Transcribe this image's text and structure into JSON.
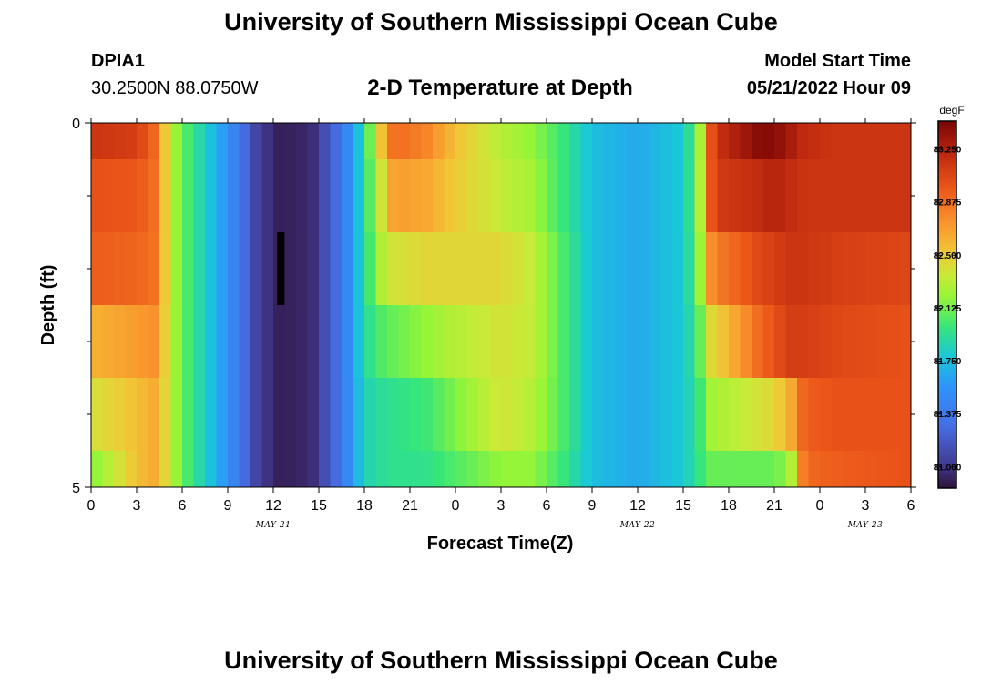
{
  "page": {
    "title": "University of Southern Mississippi Ocean Cube",
    "footer_title": "University of Southern Mississippi Ocean Cube",
    "station_id": "DPIA1",
    "station_coords": "30.2500N  88.0750W",
    "model_start_label": "Model Start Time",
    "model_start_value": "05/21/2022 Hour 09",
    "plot_title": "2-D Temperature at Depth"
  },
  "chart_data": {
    "type": "heatmap",
    "title": "2-D Temperature at Depth",
    "xlabel": "Forecast Time(Z)",
    "ylabel": "Depth (ft)",
    "x_hours": [
      0,
      54
    ],
    "xtick_labels": [
      "0",
      "3",
      "6",
      "9",
      "12",
      "15",
      "18",
      "21",
      "0",
      "3",
      "6",
      "9",
      "12",
      "15",
      "18",
      "21",
      "0",
      "3",
      "6"
    ],
    "date_labels": [
      {
        "text": "MAY 21",
        "hour": 12
      },
      {
        "text": "MAY 22",
        "hour": 36
      },
      {
        "text": "MAY 23",
        "hour": 51
      }
    ],
    "ylim": [
      0,
      5
    ],
    "ytick_labels": [
      "0",
      "5"
    ],
    "y_minor_ticks": [
      1,
      2,
      3,
      4
    ],
    "depth_bands": [
      [
        0,
        0.5
      ],
      [
        0.5,
        1.5
      ],
      [
        1.5,
        2.5
      ],
      [
        2.5,
        3.5
      ],
      [
        3.5,
        4.5
      ],
      [
        4.5,
        5
      ]
    ],
    "column_hours": 0.75,
    "colorbar": {
      "unit": "degF",
      "min": 80.85,
      "max": 83.45,
      "tick_values": [
        81.0,
        81.375,
        81.75,
        82.125,
        82.5,
        82.875,
        83.25
      ],
      "tick_labels": [
        "81.000",
        "81.375",
        "81.750",
        "82.125",
        "82.500",
        "82.875",
        "83.250"
      ]
    },
    "profiles": [
      {
        "hour": 0,
        "values": [
          83.15,
          83.0,
          82.95,
          82.6,
          82.4,
          82.15
        ]
      },
      {
        "hour": 3,
        "values": [
          83.1,
          82.98,
          82.92,
          82.7,
          82.55,
          82.55
        ]
      },
      {
        "hour": 4.5,
        "values": [
          82.85,
          82.85,
          82.85,
          82.75,
          82.65,
          82.65
        ]
      },
      {
        "hour": 5,
        "values": [
          82.4,
          82.4,
          82.4,
          82.4,
          82.4,
          82.4
        ]
      },
      {
        "hour": 6,
        "values": [
          82.1,
          82.1,
          82.1,
          82.1,
          82.1,
          82.1
        ]
      },
      {
        "hour": 9,
        "values": [
          81.55,
          81.55,
          81.55,
          81.55,
          81.55,
          81.55
        ]
      },
      {
        "hour": 11,
        "values": [
          81.05,
          81.05,
          81.05,
          81.05,
          81.05,
          81.05
        ]
      },
      {
        "hour": 12.5,
        "values": [
          80.9,
          80.9,
          80.9,
          80.9,
          80.9,
          80.9
        ]
      },
      {
        "hour": 14.5,
        "values": [
          80.95,
          80.95,
          80.95,
          80.95,
          80.95,
          80.95
        ]
      },
      {
        "hour": 16.5,
        "values": [
          81.35,
          81.35,
          81.35,
          81.35,
          81.35,
          81.35
        ]
      },
      {
        "hour": 18,
        "values": [
          81.9,
          81.9,
          81.9,
          81.9,
          81.85,
          81.85
        ]
      },
      {
        "hour": 19.5,
        "values": [
          82.75,
          82.55,
          82.4,
          82.1,
          81.95,
          81.95
        ]
      },
      {
        "hour": 20,
        "values": [
          82.9,
          82.7,
          82.4,
          82.1,
          81.95,
          81.95
        ]
      },
      {
        "hour": 22,
        "values": [
          82.8,
          82.65,
          82.45,
          82.2,
          82.0,
          81.95
        ]
      },
      {
        "hour": 24,
        "values": [
          82.55,
          82.5,
          82.45,
          82.3,
          82.15,
          82.05
        ]
      },
      {
        "hour": 27,
        "values": [
          82.3,
          82.35,
          82.45,
          82.4,
          82.4,
          82.2
        ]
      },
      {
        "hour": 29,
        "values": [
          82.2,
          82.25,
          82.35,
          82.35,
          82.3,
          82.2
        ]
      },
      {
        "hour": 31,
        "values": [
          82.0,
          82.0,
          82.05,
          82.05,
          82.05,
          82.0
        ]
      },
      {
        "hour": 33,
        "values": [
          81.75,
          81.75,
          81.75,
          81.75,
          81.75,
          81.75
        ]
      },
      {
        "hour": 36,
        "values": [
          81.65,
          81.65,
          81.65,
          81.65,
          81.65,
          81.65
        ]
      },
      {
        "hour": 39,
        "values": [
          81.8,
          81.8,
          81.8,
          81.8,
          81.8,
          81.8
        ]
      },
      {
        "hour": 40,
        "values": [
          82.15,
          82.15,
          82.1,
          82.0,
          81.95,
          81.95
        ]
      },
      {
        "hour": 40.5,
        "values": [
          82.6,
          82.7,
          82.6,
          82.4,
          82.2,
          82.1
        ]
      },
      {
        "hour": 41,
        "values": [
          83.15,
          83.1,
          82.8,
          82.45,
          82.25,
          82.1
        ]
      },
      {
        "hour": 44,
        "values": [
          83.4,
          83.2,
          83.05,
          82.9,
          82.4,
          82.1
        ]
      },
      {
        "hour": 45,
        "values": [
          83.4,
          83.25,
          83.1,
          83.0,
          82.45,
          82.1
        ]
      },
      {
        "hour": 46,
        "values": [
          83.3,
          83.2,
          83.15,
          83.1,
          82.6,
          82.2
        ]
      },
      {
        "hour": 47,
        "values": [
          83.2,
          83.15,
          83.15,
          83.1,
          82.95,
          82.9
        ]
      },
      {
        "hour": 49,
        "values": [
          83.15,
          83.15,
          83.1,
          83.05,
          83.0,
          82.95
        ]
      },
      {
        "hour": 54,
        "values": [
          83.15,
          83.15,
          83.05,
          83.0,
          83.0,
          83.0
        ]
      }
    ],
    "current_time_marker": {
      "hour": 12.5,
      "depth_start": 1.5,
      "depth_end": 2.5,
      "color": "#000000"
    }
  }
}
